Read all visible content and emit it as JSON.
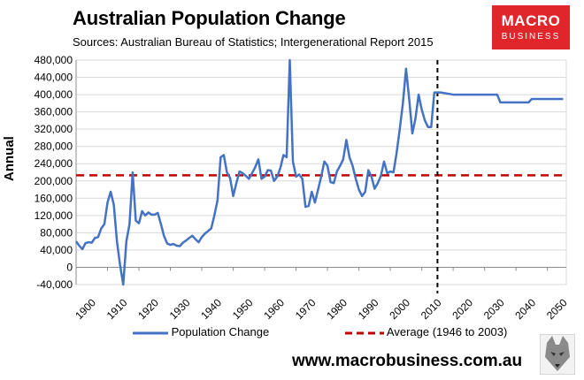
{
  "title": "Australian Population Change",
  "subtitle": "Sources: Australian Bureau of Statistics; Intergenerational Report 2015",
  "logo": {
    "line1": "MACRO",
    "line2": "BUSINESS"
  },
  "website": "www.macrobusiness.com.au",
  "colors": {
    "series": "#4472c4",
    "average": "#c00000",
    "logo_bg": "#e0262b"
  },
  "chart_data": {
    "type": "line",
    "title": "Australian Population Change",
    "xlabel": "",
    "ylabel": "Annual",
    "xlim": [
      1900,
      2056
    ],
    "ylim": [
      -40000,
      480000
    ],
    "x_ticks": [
      1900,
      1910,
      1920,
      1930,
      1940,
      1950,
      1960,
      1970,
      1980,
      1990,
      2000,
      2010,
      2020,
      2030,
      2040,
      2050
    ],
    "y_ticks": [
      -40000,
      0,
      40000,
      80000,
      120000,
      160000,
      200000,
      240000,
      280000,
      320000,
      360000,
      400000,
      440000,
      480000
    ],
    "y_tick_labels": [
      "-40,000",
      "0",
      "40,000",
      "80,000",
      "120,000",
      "160,000",
      "200,000",
      "240,000",
      "280,000",
      "320,000",
      "360,000",
      "400,000",
      "440,000",
      "480,000"
    ],
    "grid": "horizontal",
    "legend_position": "bottom",
    "projection_divider_x": 2015,
    "series": [
      {
        "name": "Population Change",
        "style": "solid",
        "x": [
          1900,
          1901,
          1902,
          1903,
          1904,
          1905,
          1906,
          1907,
          1908,
          1909,
          1910,
          1911,
          1912,
          1913,
          1914,
          1915,
          1916,
          1917,
          1918,
          1919,
          1920,
          1921,
          1922,
          1923,
          1924,
          1925,
          1926,
          1927,
          1928,
          1929,
          1930,
          1931,
          1932,
          1933,
          1934,
          1935,
          1936,
          1937,
          1938,
          1939,
          1940,
          1941,
          1942,
          1943,
          1944,
          1945,
          1946,
          1947,
          1948,
          1949,
          1950,
          1951,
          1952,
          1953,
          1954,
          1955,
          1956,
          1957,
          1958,
          1959,
          1960,
          1961,
          1962,
          1963,
          1964,
          1965,
          1966,
          1967,
          1968,
          1969,
          1970,
          1971,
          1972,
          1973,
          1974,
          1975,
          1976,
          1977,
          1978,
          1979,
          1980,
          1981,
          1982,
          1983,
          1984,
          1985,
          1986,
          1987,
          1988,
          1989,
          1990,
          1991,
          1992,
          1993,
          1994,
          1995,
          1996,
          1997,
          1998,
          1999,
          2000,
          2001,
          2002,
          2003,
          2004,
          2005,
          2006,
          2007,
          2008,
          2009,
          2010,
          2011,
          2012,
          2013,
          2014,
          2015,
          2016,
          2020,
          2025,
          2030,
          2034,
          2035,
          2040,
          2044,
          2045,
          2050,
          2055
        ],
        "y": [
          60000,
          50000,
          42000,
          56000,
          58000,
          57000,
          68000,
          70000,
          90000,
          100000,
          150000,
          175000,
          145000,
          60000,
          5000,
          -40000,
          60000,
          100000,
          220000,
          108000,
          102000,
          130000,
          120000,
          127000,
          122000,
          122000,
          126000,
          100000,
          72000,
          55000,
          52000,
          54000,
          50000,
          49000,
          57000,
          62000,
          68000,
          73000,
          65000,
          58000,
          70000,
          78000,
          84000,
          90000,
          120000,
          155000,
          255000,
          260000,
          220000,
          207000,
          165000,
          195000,
          222000,
          218000,
          212000,
          205000,
          218000,
          232000,
          250000,
          205000,
          210000,
          225000,
          224000,
          200000,
          210000,
          230000,
          260000,
          255000,
          480000,
          245000,
          210000,
          215000,
          205000,
          140000,
          142000,
          175000,
          150000,
          180000,
          210000,
          245000,
          235000,
          197000,
          195000,
          222000,
          235000,
          250000,
          295000,
          255000,
          235000,
          205000,
          180000,
          165000,
          175000,
          225000,
          210000,
          182000,
          195000,
          212000,
          245000,
          218000,
          222000,
          220000,
          265000,
          320000,
          380000,
          460000,
          390000,
          310000,
          345000,
          400000,
          365000,
          340000,
          325000,
          325000,
          405000,
          405000,
          405000,
          400000,
          400000,
          400000,
          400000,
          382000,
          382000,
          382000,
          390000,
          390000,
          390000
        ]
      },
      {
        "name": "Average (1946 to 2003)",
        "style": "dashed",
        "x": [
          1900,
          2056
        ],
        "y": [
          213000,
          213000
        ]
      }
    ]
  }
}
